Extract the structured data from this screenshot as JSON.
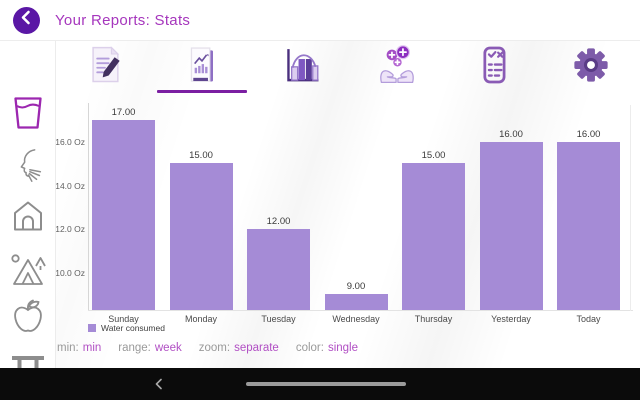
{
  "header": {
    "title": "Your Reports: Stats",
    "back_icon": "chevron-left"
  },
  "sidebar": {
    "items": [
      {
        "icon": "water-glass-icon",
        "selected": true
      },
      {
        "icon": "sneeze-icon",
        "selected": false
      },
      {
        "icon": "house-icon",
        "selected": false
      },
      {
        "icon": "camping-icon",
        "selected": false
      },
      {
        "icon": "apple-icon",
        "selected": false
      },
      {
        "icon": "bench-icon",
        "selected": false
      }
    ]
  },
  "tabs": {
    "items": [
      {
        "icon": "edit-note-icon",
        "selected": false
      },
      {
        "icon": "stats-report-icon",
        "selected": true
      },
      {
        "icon": "histogram-icon",
        "selected": false
      },
      {
        "icon": "hands-care-icon",
        "selected": false
      },
      {
        "icon": "checklist-icon",
        "selected": false
      },
      {
        "icon": "settings-gear-icon",
        "selected": false
      }
    ]
  },
  "chart_data": {
    "type": "bar",
    "title": "",
    "categories": [
      "Sunday",
      "Monday",
      "Tuesday",
      "Wednesday",
      "Thursday",
      "Yesterday",
      "Today"
    ],
    "values": [
      17,
      15,
      12,
      9,
      15,
      16,
      16
    ],
    "value_labels": [
      "17.00",
      "15.00",
      "12.00",
      "9.00",
      "15.00",
      "16.00",
      "16.00"
    ],
    "unit": "Oz",
    "y_ticks": [
      {
        "label": "16.0 Oz",
        "value": 16
      },
      {
        "label": "14.0 Oz",
        "value": 14
      },
      {
        "label": "12.0 Oz",
        "value": 12
      },
      {
        "label": "10.0 Oz",
        "value": 10
      }
    ],
    "ylim": [
      8.26,
      17.8
    ],
    "grid": false,
    "legend": [
      {
        "label": "Water consumed",
        "color": "#a58bd6"
      }
    ],
    "legend_position": "bottom-left",
    "bar_color": "#a58bd6"
  },
  "controls": {
    "items": [
      {
        "label": "min:",
        "value": "min"
      },
      {
        "label": "range:",
        "value": "week"
      },
      {
        "label": "zoom:",
        "value": "separate"
      },
      {
        "label": "color:",
        "value": "single"
      }
    ]
  },
  "android_nav": {
    "back_icon": "chevron-left",
    "home_icon": "home-pill"
  },
  "colors": {
    "accent": "#8e24aa",
    "bar": "#a58bd6",
    "header_title": "#a637bd",
    "back_button_bg": "#5a17a5",
    "control_value": "#b14fc4",
    "tab_underline": "#7b1fa2"
  }
}
